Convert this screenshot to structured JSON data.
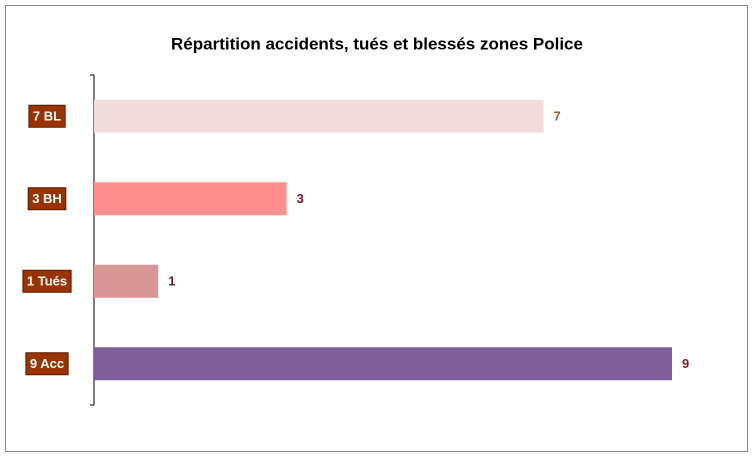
{
  "chart_data": {
    "type": "hbar",
    "title": "Répartition accidents, tués et blessés zones Police",
    "categories": [
      "7 BL",
      "3 BH",
      "1 Tués",
      "9 Acc"
    ],
    "values": [
      7,
      3,
      1,
      9
    ],
    "colors": [
      "#f2dcdb",
      "#ff8f8f",
      "#d99694",
      "#7f5f9b"
    ],
    "value_label_colors": [
      "#996633",
      "#7f1a1a",
      "#7f1a1a",
      "#7f1a1a"
    ],
    "category_label_color": "#993300",
    "xlim": [
      0,
      9
    ]
  }
}
